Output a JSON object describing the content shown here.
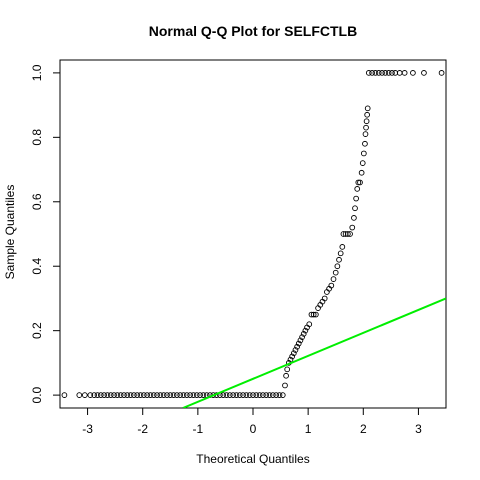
{
  "chart_data": {
    "type": "scatter",
    "title": "Normal Q-Q Plot for SELFCTLB",
    "xlabel": "Theoretical Quantiles",
    "ylabel": "Sample Quantiles",
    "xlim": [
      -3.5,
      3.5
    ],
    "ylim": [
      -0.04,
      1.04
    ],
    "x_ticks": [
      -3,
      -2,
      -1,
      0,
      1,
      2,
      3
    ],
    "y_ticks": [
      0.0,
      0.2,
      0.4,
      0.6,
      0.8,
      1.0
    ],
    "x_tick_labels": [
      "-3",
      "-2",
      "-1",
      "0",
      "1",
      "2",
      "3"
    ],
    "y_tick_labels": [
      "0.0",
      "0.2",
      "0.4",
      "0.6",
      "0.8",
      "1.0"
    ],
    "grid": false,
    "point_color": "#000000",
    "reference_line": {
      "color": "#00ee00",
      "x": [
        -1.27,
        3.5
      ],
      "y": [
        -0.04,
        0.3
      ]
    },
    "points": [
      [
        -3.42,
        0.0
      ],
      [
        -3.15,
        0.0
      ],
      [
        -3.05,
        0.0
      ],
      [
        -2.95,
        0.0
      ],
      [
        -2.88,
        0.0
      ],
      [
        -2.82,
        0.0
      ],
      [
        -2.76,
        0.0
      ],
      [
        -2.7,
        0.0
      ],
      [
        -2.64,
        0.0
      ],
      [
        -2.58,
        0.0
      ],
      [
        -2.52,
        0.0
      ],
      [
        -2.46,
        0.0
      ],
      [
        -2.4,
        0.0
      ],
      [
        -2.34,
        0.0
      ],
      [
        -2.28,
        0.0
      ],
      [
        -2.22,
        0.0
      ],
      [
        -2.16,
        0.0
      ],
      [
        -2.1,
        0.0
      ],
      [
        -2.04,
        0.0
      ],
      [
        -1.98,
        0.0
      ],
      [
        -1.92,
        0.0
      ],
      [
        -1.86,
        0.0
      ],
      [
        -1.8,
        0.0
      ],
      [
        -1.74,
        0.0
      ],
      [
        -1.68,
        0.0
      ],
      [
        -1.62,
        0.0
      ],
      [
        -1.56,
        0.0
      ],
      [
        -1.5,
        0.0
      ],
      [
        -1.44,
        0.0
      ],
      [
        -1.38,
        0.0
      ],
      [
        -1.32,
        0.0
      ],
      [
        -1.26,
        0.0
      ],
      [
        -1.2,
        0.0
      ],
      [
        -1.14,
        0.0
      ],
      [
        -1.08,
        0.0
      ],
      [
        -1.02,
        0.0
      ],
      [
        -0.96,
        0.0
      ],
      [
        -0.9,
        0.0
      ],
      [
        -0.84,
        0.0
      ],
      [
        -0.78,
        0.0
      ],
      [
        -0.72,
        0.0
      ],
      [
        -0.66,
        0.0
      ],
      [
        -0.6,
        0.0
      ],
      [
        -0.54,
        0.0
      ],
      [
        -0.48,
        0.0
      ],
      [
        -0.42,
        0.0
      ],
      [
        -0.36,
        0.0
      ],
      [
        -0.3,
        0.0
      ],
      [
        -0.24,
        0.0
      ],
      [
        -0.18,
        0.0
      ],
      [
        -0.12,
        0.0
      ],
      [
        -0.06,
        0.0
      ],
      [
        0.0,
        0.0
      ],
      [
        0.06,
        0.0
      ],
      [
        0.12,
        0.0
      ],
      [
        0.18,
        0.0
      ],
      [
        0.24,
        0.0
      ],
      [
        0.3,
        0.0
      ],
      [
        0.36,
        0.0
      ],
      [
        0.42,
        0.0
      ],
      [
        0.48,
        0.0
      ],
      [
        0.54,
        0.0
      ],
      [
        0.58,
        0.03
      ],
      [
        0.6,
        0.06
      ],
      [
        0.62,
        0.08
      ],
      [
        0.65,
        0.1
      ],
      [
        0.68,
        0.11
      ],
      [
        0.71,
        0.12
      ],
      [
        0.74,
        0.13
      ],
      [
        0.77,
        0.14
      ],
      [
        0.8,
        0.15
      ],
      [
        0.83,
        0.16
      ],
      [
        0.86,
        0.17
      ],
      [
        0.89,
        0.18
      ],
      [
        0.92,
        0.19
      ],
      [
        0.95,
        0.2
      ],
      [
        0.98,
        0.21
      ],
      [
        1.02,
        0.22
      ],
      [
        1.06,
        0.25
      ],
      [
        1.1,
        0.25
      ],
      [
        1.14,
        0.25
      ],
      [
        1.18,
        0.27
      ],
      [
        1.22,
        0.28
      ],
      [
        1.26,
        0.29
      ],
      [
        1.3,
        0.3
      ],
      [
        1.34,
        0.32
      ],
      [
        1.38,
        0.33
      ],
      [
        1.42,
        0.34
      ],
      [
        1.46,
        0.36
      ],
      [
        1.5,
        0.38
      ],
      [
        1.53,
        0.4
      ],
      [
        1.56,
        0.42
      ],
      [
        1.59,
        0.44
      ],
      [
        1.62,
        0.46
      ],
      [
        1.64,
        0.5
      ],
      [
        1.68,
        0.5
      ],
      [
        1.72,
        0.5
      ],
      [
        1.76,
        0.5
      ],
      [
        1.8,
        0.52
      ],
      [
        1.83,
        0.55
      ],
      [
        1.85,
        0.58
      ],
      [
        1.87,
        0.61
      ],
      [
        1.89,
        0.64
      ],
      [
        1.91,
        0.66
      ],
      [
        1.94,
        0.66
      ],
      [
        1.97,
        0.69
      ],
      [
        1.99,
        0.72
      ],
      [
        2.01,
        0.75
      ],
      [
        2.03,
        0.78
      ],
      [
        2.04,
        0.81
      ],
      [
        2.05,
        0.83
      ],
      [
        2.06,
        0.85
      ],
      [
        2.07,
        0.87
      ],
      [
        2.08,
        0.89
      ],
      [
        2.1,
        1.0
      ],
      [
        2.16,
        1.0
      ],
      [
        2.22,
        1.0
      ],
      [
        2.28,
        1.0
      ],
      [
        2.34,
        1.0
      ],
      [
        2.4,
        1.0
      ],
      [
        2.46,
        1.0
      ],
      [
        2.52,
        1.0
      ],
      [
        2.58,
        1.0
      ],
      [
        2.66,
        1.0
      ],
      [
        2.75,
        1.0
      ],
      [
        2.9,
        1.0
      ],
      [
        3.1,
        1.0
      ],
      [
        3.42,
        1.0
      ]
    ]
  }
}
